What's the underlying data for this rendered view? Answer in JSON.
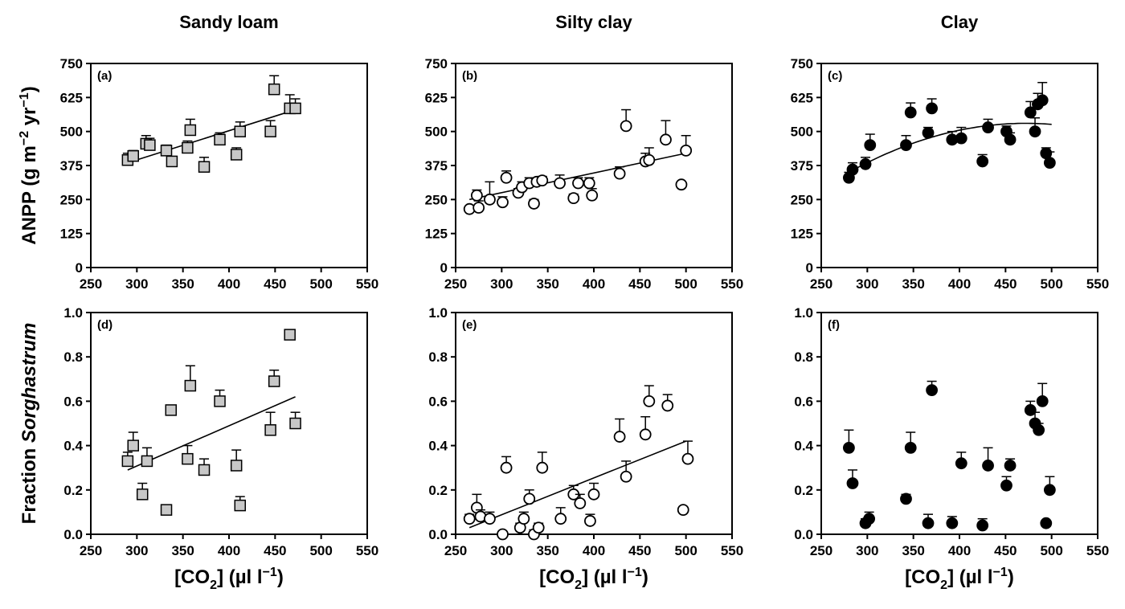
{
  "chart_data": [
    {
      "type": "scatter",
      "panel_label": "(a)",
      "column_title": "Sandy loam",
      "ylabel": "ANPP (g m−2 yr−1)",
      "xlabel": "",
      "xlim": [
        250,
        550
      ],
      "ylim": [
        0,
        750
      ],
      "x_ticks": [
        "250",
        "300",
        "350",
        "400",
        "450",
        "500",
        "550"
      ],
      "y_ticks": [
        "0",
        "125",
        "250",
        "375",
        "500",
        "625",
        "750"
      ],
      "marker": {
        "shape": "square",
        "fill": "#c8c8c8",
        "stroke": "#000000"
      },
      "fit": {
        "type": "linear",
        "x_range": [
          290,
          472
        ],
        "y_range": [
          385,
          580
        ]
      },
      "points": [
        {
          "x": 290,
          "y": 395,
          "err": 25
        },
        {
          "x": 296,
          "y": 410,
          "err": 20
        },
        {
          "x": 310,
          "y": 455,
          "err": 30
        },
        {
          "x": 314,
          "y": 450,
          "err": 25
        },
        {
          "x": 332,
          "y": 430,
          "err": 20
        },
        {
          "x": 338,
          "y": 390,
          "err": 15
        },
        {
          "x": 355,
          "y": 440,
          "err": 25
        },
        {
          "x": 358,
          "y": 505,
          "err": 40
        },
        {
          "x": 373,
          "y": 370,
          "err": 35
        },
        {
          "x": 390,
          "y": 470,
          "err": 25
        },
        {
          "x": 408,
          "y": 415,
          "err": 25
        },
        {
          "x": 412,
          "y": 500,
          "err": 35
        },
        {
          "x": 445,
          "y": 500,
          "err": 40
        },
        {
          "x": 449,
          "y": 655,
          "err": 50
        },
        {
          "x": 466,
          "y": 585,
          "err": 50
        },
        {
          "x": 472,
          "y": 585,
          "err": 35
        }
      ]
    },
    {
      "type": "scatter",
      "panel_label": "(b)",
      "column_title": "Silty clay",
      "ylabel": "",
      "xlabel": "",
      "xlim": [
        250,
        550
      ],
      "ylim": [
        0,
        750
      ],
      "x_ticks": [
        "250",
        "300",
        "350",
        "400",
        "450",
        "500",
        "550"
      ],
      "y_ticks": [
        "0",
        "125",
        "250",
        "375",
        "500",
        "625",
        "750"
      ],
      "marker": {
        "shape": "circle",
        "fill": "#ffffff",
        "stroke": "#000000"
      },
      "fit": {
        "type": "linear",
        "x_range": [
          265,
          500
        ],
        "y_range": [
          250,
          420
        ]
      },
      "points": [
        {
          "x": 265,
          "y": 215,
          "err": 10
        },
        {
          "x": 273,
          "y": 265,
          "err": 20
        },
        {
          "x": 275,
          "y": 220,
          "err": 25
        },
        {
          "x": 287,
          "y": 250,
          "err": 65
        },
        {
          "x": 301,
          "y": 240,
          "err": 20
        },
        {
          "x": 305,
          "y": 330,
          "err": 25
        },
        {
          "x": 318,
          "y": 275,
          "err": 15
        },
        {
          "x": 322,
          "y": 295,
          "err": 20
        },
        {
          "x": 330,
          "y": 310,
          "err": 20
        },
        {
          "x": 335,
          "y": 235,
          "err": 15
        },
        {
          "x": 338,
          "y": 315,
          "err": 10
        },
        {
          "x": 344,
          "y": 320,
          "err": 15
        },
        {
          "x": 363,
          "y": 310,
          "err": 30
        },
        {
          "x": 378,
          "y": 255,
          "err": 15
        },
        {
          "x": 383,
          "y": 310,
          "err": 20
        },
        {
          "x": 395,
          "y": 310,
          "err": 20
        },
        {
          "x": 398,
          "y": 265,
          "err": 25
        },
        {
          "x": 428,
          "y": 345,
          "err": 25
        },
        {
          "x": 435,
          "y": 520,
          "err": 60
        },
        {
          "x": 456,
          "y": 390,
          "err": 30
        },
        {
          "x": 460,
          "y": 395,
          "err": 45
        },
        {
          "x": 478,
          "y": 470,
          "err": 70
        },
        {
          "x": 495,
          "y": 305,
          "err": 10
        },
        {
          "x": 500,
          "y": 430,
          "err": 55
        }
      ]
    },
    {
      "type": "scatter",
      "panel_label": "(c)",
      "column_title": "Clay",
      "ylabel": "",
      "xlabel": "",
      "xlim": [
        250,
        550
      ],
      "ylim": [
        0,
        750
      ],
      "x_ticks": [
        "250",
        "300",
        "350",
        "400",
        "450",
        "500",
        "550"
      ],
      "y_ticks": [
        "0",
        "125",
        "250",
        "375",
        "500",
        "625",
        "750"
      ],
      "marker": {
        "shape": "circle",
        "fill": "#000000",
        "stroke": "#000000"
      },
      "fit": {
        "type": "quadratic",
        "x_range": [
          280,
          500
        ],
        "vertex": [
          472,
          530
        ],
        "y_at_start": 350
      },
      "points": [
        {
          "x": 280,
          "y": 330,
          "err": 20
        },
        {
          "x": 284,
          "y": 360,
          "err": 25
        },
        {
          "x": 298,
          "y": 380,
          "err": 25
        },
        {
          "x": 303,
          "y": 450,
          "err": 40
        },
        {
          "x": 342,
          "y": 450,
          "err": 35
        },
        {
          "x": 347,
          "y": 570,
          "err": 35
        },
        {
          "x": 366,
          "y": 495,
          "err": 20
        },
        {
          "x": 370,
          "y": 585,
          "err": 35
        },
        {
          "x": 392,
          "y": 470,
          "err": 30
        },
        {
          "x": 402,
          "y": 475,
          "err": 40
        },
        {
          "x": 425,
          "y": 390,
          "err": 25
        },
        {
          "x": 431,
          "y": 515,
          "err": 30
        },
        {
          "x": 451,
          "y": 500,
          "err": 20
        },
        {
          "x": 455,
          "y": 470,
          "err": 25
        },
        {
          "x": 477,
          "y": 570,
          "err": 40
        },
        {
          "x": 482,
          "y": 500,
          "err": 50
        },
        {
          "x": 485,
          "y": 600,
          "err": 40
        },
        {
          "x": 490,
          "y": 615,
          "err": 65
        },
        {
          "x": 494,
          "y": 420,
          "err": 20
        },
        {
          "x": 498,
          "y": 385,
          "err": 40
        }
      ]
    },
    {
      "type": "scatter",
      "panel_label": "(d)",
      "column_title": "",
      "ylabel": "Fraction Sorghastrum",
      "xlabel": "[CO2] (µl l−1)",
      "xlim": [
        250,
        550
      ],
      "ylim": [
        0,
        1.0
      ],
      "x_ticks": [
        "250",
        "300",
        "350",
        "400",
        "450",
        "500",
        "550"
      ],
      "y_ticks": [
        "0.0",
        "0.2",
        "0.4",
        "0.6",
        "0.8",
        "1.0"
      ],
      "marker": {
        "shape": "square",
        "fill": "#c8c8c8",
        "stroke": "#000000"
      },
      "fit": {
        "type": "linear",
        "x_range": [
          290,
          472
        ],
        "y_range": [
          0.29,
          0.62
        ]
      },
      "points": [
        {
          "x": 290,
          "y": 0.33,
          "err": 0.04
        },
        {
          "x": 296,
          "y": 0.4,
          "err": 0.06
        },
        {
          "x": 306,
          "y": 0.18,
          "err": 0.05
        },
        {
          "x": 311,
          "y": 0.33,
          "err": 0.06
        },
        {
          "x": 332,
          "y": 0.11,
          "err": 0.02
        },
        {
          "x": 337,
          "y": 0.56,
          "err": 0.02
        },
        {
          "x": 355,
          "y": 0.34,
          "err": 0.06
        },
        {
          "x": 358,
          "y": 0.67,
          "err": 0.09
        },
        {
          "x": 373,
          "y": 0.29,
          "err": 0.05
        },
        {
          "x": 390,
          "y": 0.6,
          "err": 0.05
        },
        {
          "x": 408,
          "y": 0.31,
          "err": 0.07
        },
        {
          "x": 412,
          "y": 0.13,
          "err": 0.04
        },
        {
          "x": 445,
          "y": 0.47,
          "err": 0.08
        },
        {
          "x": 449,
          "y": 0.69,
          "err": 0.05
        },
        {
          "x": 466,
          "y": 0.9,
          "err": 0.02
        },
        {
          "x": 472,
          "y": 0.5,
          "err": 0.05
        }
      ]
    },
    {
      "type": "scatter",
      "panel_label": "(e)",
      "column_title": "",
      "ylabel": "",
      "xlabel": "[CO2] (µl l−1)",
      "xlim": [
        250,
        550
      ],
      "ylim": [
        0,
        1.0
      ],
      "x_ticks": [
        "250",
        "300",
        "350",
        "400",
        "450",
        "500",
        "550"
      ],
      "y_ticks": [
        "0.0",
        "0.2",
        "0.4",
        "0.6",
        "0.8",
        "1.0"
      ],
      "marker": {
        "shape": "circle",
        "fill": "#ffffff",
        "stroke": "#000000"
      },
      "fit": {
        "type": "linear",
        "x_range": [
          265,
          500
        ],
        "y_range": [
          0.03,
          0.42
        ]
      },
      "points": [
        {
          "x": 265,
          "y": 0.07,
          "err": 0.02
        },
        {
          "x": 273,
          "y": 0.12,
          "err": 0.06
        },
        {
          "x": 277,
          "y": 0.08,
          "err": 0.03
        },
        {
          "x": 287,
          "y": 0.07,
          "err": 0.03
        },
        {
          "x": 301,
          "y": 0.0,
          "err": 0.01
        },
        {
          "x": 305,
          "y": 0.3,
          "err": 0.05
        },
        {
          "x": 320,
          "y": 0.03,
          "err": 0.02
        },
        {
          "x": 324,
          "y": 0.07,
          "err": 0.03
        },
        {
          "x": 330,
          "y": 0.16,
          "err": 0.04
        },
        {
          "x": 335,
          "y": 0.0,
          "err": 0.02
        },
        {
          "x": 340,
          "y": 0.03,
          "err": 0.02
        },
        {
          "x": 344,
          "y": 0.3,
          "err": 0.07
        },
        {
          "x": 364,
          "y": 0.07,
          "err": 0.05
        },
        {
          "x": 378,
          "y": 0.18,
          "err": 0.04
        },
        {
          "x": 385,
          "y": 0.14,
          "err": 0.04
        },
        {
          "x": 396,
          "y": 0.06,
          "err": 0.03
        },
        {
          "x": 400,
          "y": 0.18,
          "err": 0.05
        },
        {
          "x": 428,
          "y": 0.44,
          "err": 0.08
        },
        {
          "x": 435,
          "y": 0.26,
          "err": 0.07
        },
        {
          "x": 456,
          "y": 0.45,
          "err": 0.08
        },
        {
          "x": 460,
          "y": 0.6,
          "err": 0.07
        },
        {
          "x": 480,
          "y": 0.58,
          "err": 0.05
        },
        {
          "x": 497,
          "y": 0.11,
          "err": 0.01
        },
        {
          "x": 502,
          "y": 0.34,
          "err": 0.08
        }
      ]
    },
    {
      "type": "scatter",
      "panel_label": "(f)",
      "column_title": "",
      "ylabel": "",
      "xlabel": "[CO2] (µl l−1)",
      "xlim": [
        250,
        550
      ],
      "ylim": [
        0,
        1.0
      ],
      "x_ticks": [
        "250",
        "300",
        "350",
        "400",
        "450",
        "500",
        "550"
      ],
      "y_ticks": [
        "0.0",
        "0.2",
        "0.4",
        "0.6",
        "0.8",
        "1.0"
      ],
      "marker": {
        "shape": "circle",
        "fill": "#000000",
        "stroke": "#000000"
      },
      "fit": null,
      "points": [
        {
          "x": 280,
          "y": 0.39,
          "err": 0.08
        },
        {
          "x": 284,
          "y": 0.23,
          "err": 0.06
        },
        {
          "x": 298,
          "y": 0.05,
          "err": 0.02
        },
        {
          "x": 302,
          "y": 0.07,
          "err": 0.03
        },
        {
          "x": 342,
          "y": 0.16,
          "err": 0.02
        },
        {
          "x": 347,
          "y": 0.39,
          "err": 0.07
        },
        {
          "x": 366,
          "y": 0.05,
          "err": 0.04
        },
        {
          "x": 370,
          "y": 0.65,
          "err": 0.04
        },
        {
          "x": 392,
          "y": 0.05,
          "err": 0.03
        },
        {
          "x": 402,
          "y": 0.32,
          "err": 0.05
        },
        {
          "x": 425,
          "y": 0.04,
          "err": 0.03
        },
        {
          "x": 431,
          "y": 0.31,
          "err": 0.08
        },
        {
          "x": 451,
          "y": 0.22,
          "err": 0.04
        },
        {
          "x": 455,
          "y": 0.31,
          "err": 0.03
        },
        {
          "x": 477,
          "y": 0.56,
          "err": 0.04
        },
        {
          "x": 482,
          "y": 0.5,
          "err": 0.05
        },
        {
          "x": 486,
          "y": 0.47,
          "err": 0.03
        },
        {
          "x": 490,
          "y": 0.6,
          "err": 0.08
        },
        {
          "x": 494,
          "y": 0.05,
          "err": 0.01
        },
        {
          "x": 498,
          "y": 0.2,
          "err": 0.06
        }
      ]
    }
  ]
}
